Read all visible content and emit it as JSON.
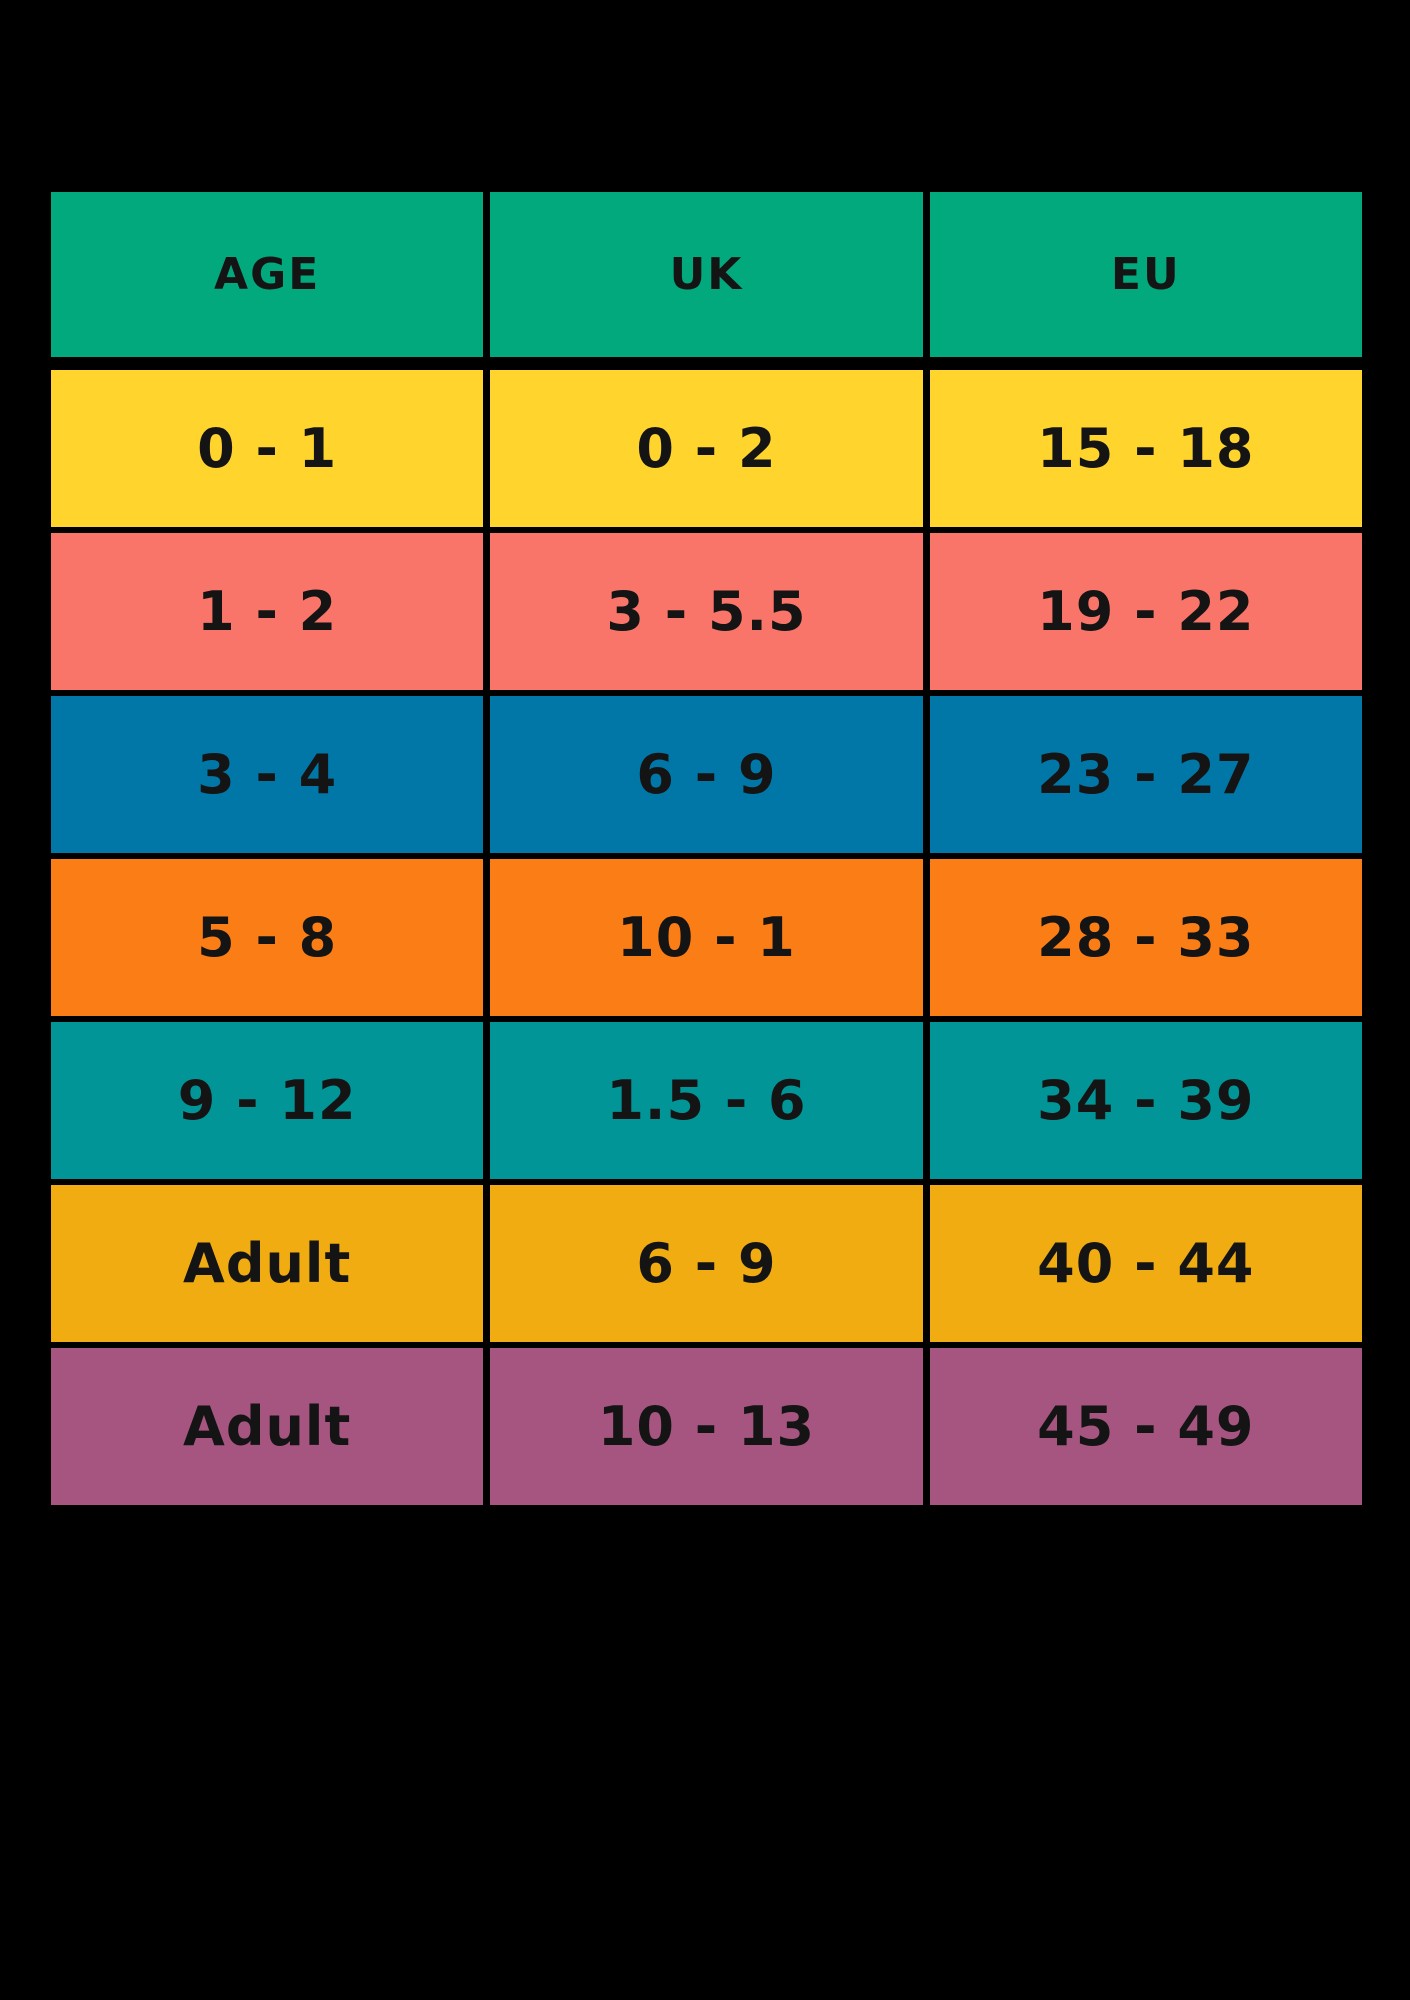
{
  "chart_data": {
    "type": "table",
    "columns": [
      "AGE",
      "UK",
      "EU"
    ],
    "rows": [
      {
        "cells": [
          "0 - 1",
          "0 - 2",
          "15 - 18"
        ],
        "bg": "#FED42D"
      },
      {
        "cells": [
          "1 - 2",
          "3 - 5.5",
          "19 - 22"
        ],
        "bg": "#FA7569"
      },
      {
        "cells": [
          "3 - 4",
          "6 - 9",
          "23 - 27"
        ],
        "bg": "#0177A7"
      },
      {
        "cells": [
          "5 - 8",
          "10 - 1",
          "28 - 33"
        ],
        "bg": "#FB7D15"
      },
      {
        "cells": [
          "9 - 12",
          "1.5 - 6",
          "34 - 39"
        ],
        "bg": "#019598"
      },
      {
        "cells": [
          "Adult",
          "6 - 9",
          "40 - 44"
        ],
        "bg": "#F0AC11"
      },
      {
        "cells": [
          "Adult",
          "10 - 13",
          "45 - 49"
        ],
        "bg": "#A65480"
      }
    ],
    "header_bg": "#01A97D",
    "background": "#000000",
    "text_color": "#141414",
    "layout": "grid table, black gridlines, no title, header row green"
  }
}
